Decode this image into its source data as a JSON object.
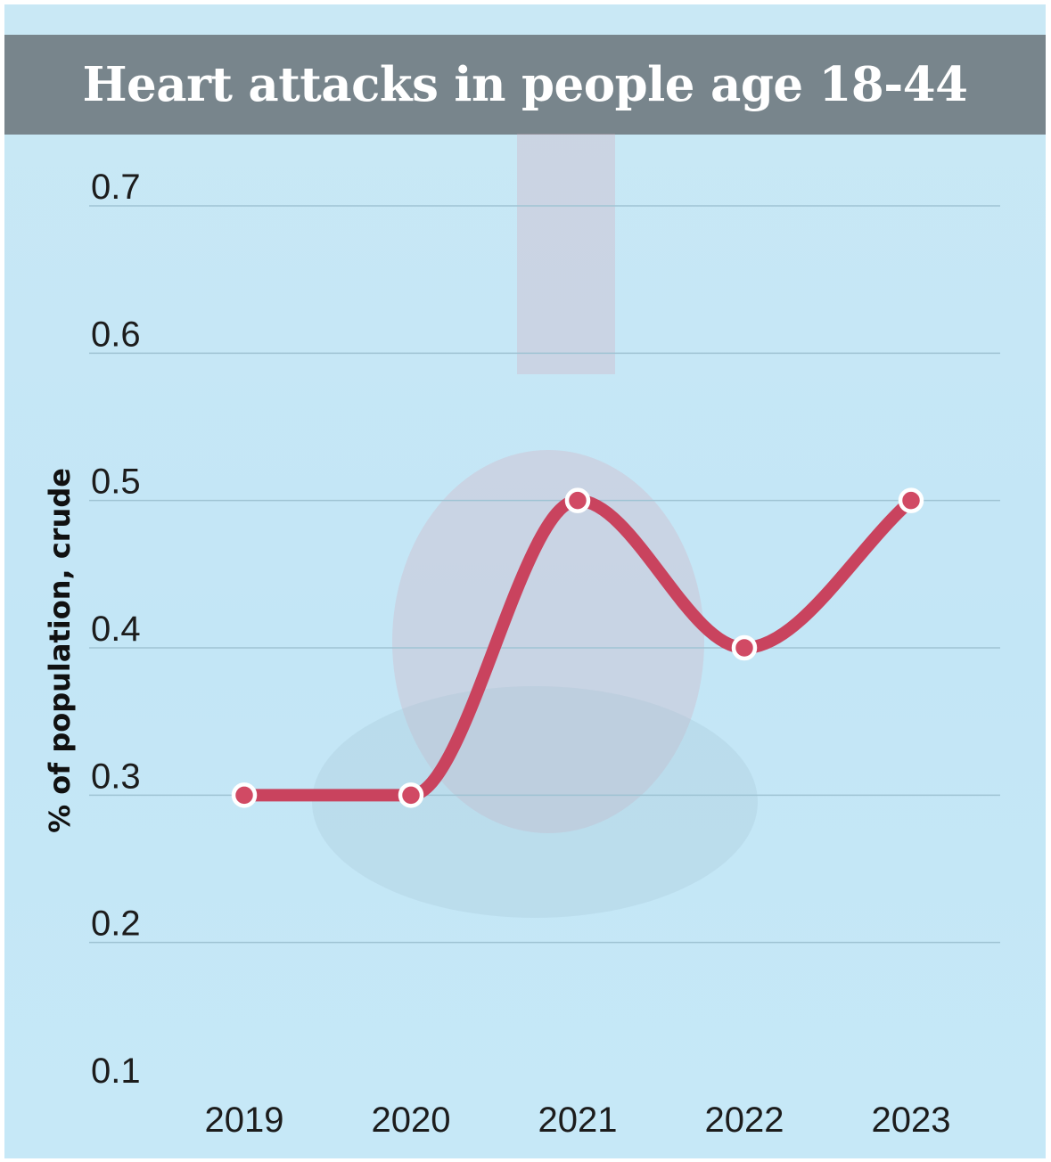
{
  "colors": {
    "background": "#c6e8f7",
    "title_bar": "#78858c",
    "title_text": "#ffffff",
    "line": "#c9435e",
    "gridline": "#9fc3d3",
    "marker_fill": "#d14a64",
    "marker_stroke": "#ffffff"
  },
  "chart_data": {
    "type": "line",
    "title": "Heart attacks in people age 18-44",
    "xlabel": "",
    "ylabel": "% of population, crude",
    "categories": [
      "2019",
      "2020",
      "2021",
      "2022",
      "2023"
    ],
    "series": [
      {
        "values": [
          0.3,
          0.3,
          0.5,
          0.4,
          0.5
        ]
      }
    ],
    "yticks": [
      "0.1",
      "0.2",
      "0.3",
      "0.4",
      "0.5",
      "0.6",
      "0.7"
    ],
    "ylim": [
      0.1,
      0.7
    ],
    "grid": true,
    "smooth": true,
    "legend": "none"
  }
}
